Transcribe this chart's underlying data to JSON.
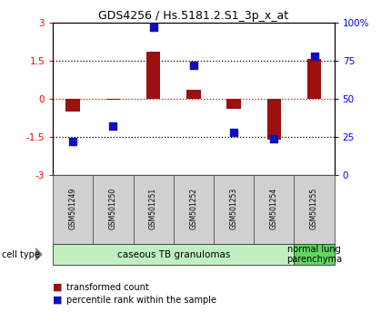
{
  "title": "GDS4256 / Hs.5181.2.S1_3p_x_at",
  "samples": [
    "GSM501249",
    "GSM501250",
    "GSM501251",
    "GSM501252",
    "GSM501253",
    "GSM501254",
    "GSM501255"
  ],
  "red_values": [
    -0.5,
    -0.05,
    1.85,
    0.35,
    -0.4,
    -1.6,
    1.55
  ],
  "blue_values": [
    22,
    32,
    97,
    72,
    28,
    24,
    78
  ],
  "groups": [
    {
      "label": "caseous TB granulomas",
      "samples_range": [
        0,
        5
      ],
      "color": "#c0f0c0"
    },
    {
      "label": "normal lung\nparenchyma",
      "samples_range": [
        6,
        6
      ],
      "color": "#60d860"
    }
  ],
  "ylim_left": [
    -3,
    3
  ],
  "ylim_right": [
    0,
    100
  ],
  "yticks_left": [
    -3,
    -1.5,
    0,
    1.5,
    3
  ],
  "yticks_right": [
    0,
    25,
    50,
    75,
    100
  ],
  "ytick_labels_left": [
    "-3",
    "-1.5",
    "0",
    "1.5",
    "3"
  ],
  "ytick_labels_right": [
    "0",
    "25",
    "50",
    "75",
    "100%"
  ],
  "hlines_black": [
    1.5,
    -1.5
  ],
  "hline_red": 0,
  "bar_color": "#9b1010",
  "dot_color": "#1010bb",
  "legend_red_label": "transformed count",
  "legend_blue_label": "percentile rank within the sample",
  "cell_type_label": "cell type",
  "background_color": "#ffffff",
  "bar_width": 0.35,
  "dot_size": 40,
  "sample_box_color": "#d0d0d0",
  "title_fontsize": 9,
  "tick_fontsize": 7.5,
  "sample_fontsize": 5.5,
  "legend_fontsize": 7,
  "cell_type_fontsize": 7,
  "group_label_fontsize": 7.5
}
